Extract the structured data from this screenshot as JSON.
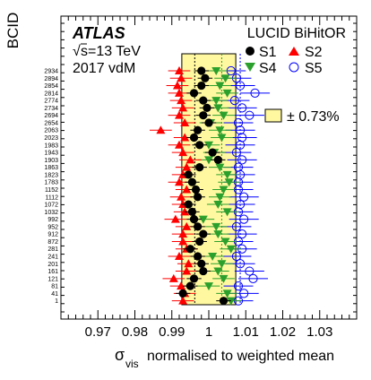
{
  "chart_data": {
    "type": "scatter",
    "experiment": "ATLAS",
    "detector": "LUCID BiHitOR",
    "energy_label": "√s=13 TeV",
    "energy_sqrt": "√",
    "energy_rest": "s=13 TeV",
    "run_label": "2017 vdM",
    "xlabel_symbol": "σ",
    "xlabel_sub": "vis",
    "xlabel_rest": "normalised to weighted mean",
    "ylabel": "BCID",
    "xlim": [
      0.96,
      1.04
    ],
    "x_ticks": [
      "0.97",
      "0.98",
      "0.99",
      "1",
      "1.01",
      "1.02",
      "1.03"
    ],
    "band_label": "± 0.73%",
    "band_halfwidth": 0.0073,
    "band_color": "#fff8a0",
    "vertical_lines": [
      {
        "x": 0.9962,
        "style": "dotted",
        "color": "#000000"
      },
      {
        "x": 1.0035,
        "style": "dotted",
        "color": "#2ca02c"
      },
      {
        "x": 1.0085,
        "style": "dotted",
        "color": "#0000ff"
      }
    ],
    "categories": [
      "2934",
      "2894",
      "2854",
      "2814",
      "2774",
      "2734",
      "2694",
      "2654",
      "2063",
      "2023",
      "1983",
      "1943",
      "1903",
      "1863",
      "1823",
      "1783",
      "1152",
      "1112",
      "1072",
      "1032",
      "992",
      "952",
      "912",
      "872",
      "281",
      "241",
      "201",
      "161",
      "121",
      "81",
      "41",
      "1"
    ],
    "series": [
      {
        "name": "S1",
        "marker": "filled-circle",
        "color": "#000000",
        "values": [
          0.998,
          0.999,
          0.998,
          0.996,
          0.9985,
          0.9995,
          0.9985,
          1.0,
          0.997,
          0.996,
          0.9975,
          1.001,
          1.0025,
          0.9975,
          0.9945,
          0.9955,
          0.9965,
          0.997,
          0.9945,
          0.9955,
          0.996,
          0.997,
          0.9985,
          0.9975,
          0.995,
          0.997,
          0.998,
          0.9985,
          0.996,
          0.995,
          0.993,
          1.004
        ],
        "errors": [
          0.002,
          0.002,
          0.002,
          0.002,
          0.002,
          0.002,
          0.002,
          0.002,
          0.002,
          0.002,
          0.002,
          0.002,
          0.002,
          0.002,
          0.002,
          0.002,
          0.002,
          0.002,
          0.002,
          0.002,
          0.002,
          0.002,
          0.002,
          0.002,
          0.002,
          0.002,
          0.002,
          0.002,
          0.002,
          0.002,
          0.002,
          0.002
        ]
      },
      {
        "name": "S2",
        "marker": "filled-triangle-up",
        "color": "#ff0000",
        "values": [
          0.992,
          0.9925,
          0.9915,
          0.992,
          0.9925,
          0.993,
          0.992,
          0.9935,
          0.987,
          0.9935,
          0.992,
          0.993,
          0.995,
          0.994,
          0.993,
          0.992,
          0.994,
          0.9925,
          0.993,
          0.9935,
          0.991,
          0.994,
          0.993,
          0.993,
          0.994,
          0.992,
          0.9945,
          0.994,
          0.9905,
          0.9925,
          0.9935,
          0.993
        ],
        "errors": [
          0.003,
          0.003,
          0.003,
          0.003,
          0.003,
          0.003,
          0.003,
          0.003,
          0.003,
          0.003,
          0.003,
          0.003,
          0.003,
          0.003,
          0.003,
          0.003,
          0.003,
          0.003,
          0.003,
          0.003,
          0.003,
          0.003,
          0.003,
          0.003,
          0.003,
          0.003,
          0.003,
          0.003,
          0.003,
          0.003,
          0.003,
          0.003
        ]
      },
      {
        "name": "S4",
        "marker": "filled-triangle-down",
        "color": "#2ca02c",
        "values": [
          1.002,
          1.0045,
          1.003,
          1.005,
          1.002,
          1.0025,
          1.004,
          1.0005,
          1.003,
          1.0035,
          1.0,
          1.0015,
          1.0,
          1.003,
          1.005,
          1.0055,
          1.004,
          1.003,
          1.0025,
          1.005,
          0.9985,
          1.002,
          1.0025,
          1.0045,
          1.006,
          1.001,
          1.0035,
          1.0025,
          1.004,
          1.0,
          1.005,
          1.006
        ],
        "errors": [
          0.003,
          0.003,
          0.003,
          0.003,
          0.003,
          0.003,
          0.003,
          0.003,
          0.003,
          0.003,
          0.003,
          0.003,
          0.003,
          0.003,
          0.003,
          0.003,
          0.003,
          0.003,
          0.003,
          0.003,
          0.003,
          0.003,
          0.003,
          0.003,
          0.003,
          0.003,
          0.003,
          0.003,
          0.003,
          0.003,
          0.003,
          0.003
        ]
      },
      {
        "name": "S5",
        "marker": "open-circle",
        "color": "#0000ff",
        "values": [
          1.006,
          1.0075,
          1.0085,
          1.0125,
          1.007,
          1.009,
          1.011,
          1.008,
          1.0085,
          1.009,
          1.0085,
          1.0075,
          1.009,
          1.008,
          1.0085,
          1.008,
          1.008,
          1.0095,
          1.0085,
          1.008,
          1.0095,
          1.0075,
          1.009,
          1.008,
          1.009,
          1.0075,
          1.0085,
          1.011,
          1.012,
          1.008,
          1.0095,
          1.008
        ],
        "errors": [
          0.004,
          0.004,
          0.004,
          0.004,
          0.004,
          0.004,
          0.004,
          0.004,
          0.004,
          0.004,
          0.004,
          0.004,
          0.004,
          0.004,
          0.004,
          0.004,
          0.004,
          0.004,
          0.004,
          0.004,
          0.004,
          0.004,
          0.004,
          0.004,
          0.004,
          0.004,
          0.004,
          0.004,
          0.004,
          0.004,
          0.004,
          0.004
        ]
      }
    ]
  }
}
